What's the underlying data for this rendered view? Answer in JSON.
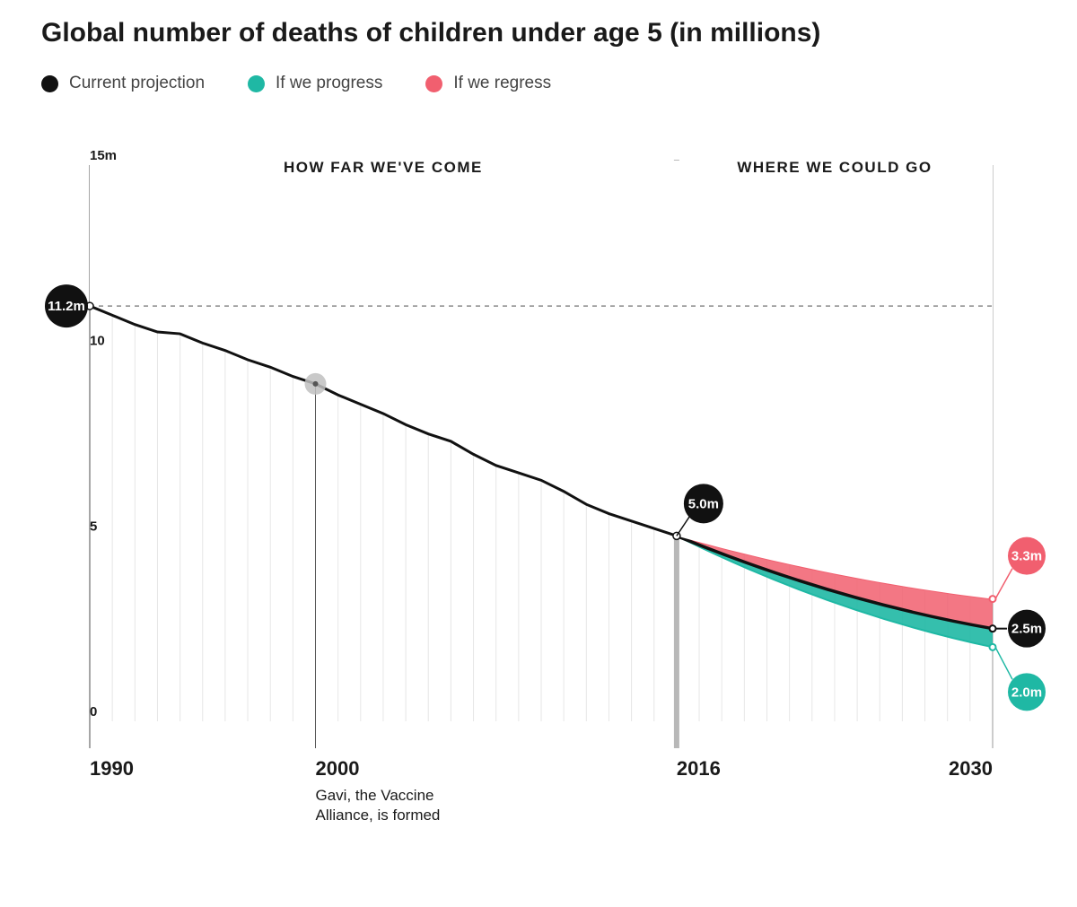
{
  "title": "Global number of deaths of children under age 5 (in millions)",
  "legend": [
    {
      "label": "Current projection",
      "color": "#111111"
    },
    {
      "label": "If we progress",
      "color": "#1fb8a4"
    },
    {
      "label": "If we regress",
      "color": "#f15f6f"
    }
  ],
  "sections": {
    "left_label": "HOW FAR WE'VE COME",
    "right_label": "WHERE WE COULD GO"
  },
  "chart": {
    "type": "line-area-projection",
    "background_color": "#ffffff",
    "x_domain": [
      1990,
      2030
    ],
    "y_domain": [
      0,
      15
    ],
    "y_ticks": [
      0,
      5,
      10,
      15
    ],
    "y_tick_labels": [
      "0",
      "5",
      "10",
      "15m"
    ],
    "x_ticks": [
      1990,
      2000,
      2016,
      2030
    ],
    "x_tick_labels": [
      "1990",
      "2000",
      "2016",
      "2030"
    ],
    "historical_line": {
      "color": "#111111",
      "width": 3,
      "points": [
        [
          1990,
          11.2
        ],
        [
          1991,
          10.95
        ],
        [
          1992,
          10.7
        ],
        [
          1993,
          10.5
        ],
        [
          1994,
          10.45
        ],
        [
          1995,
          10.2
        ],
        [
          1996,
          10.0
        ],
        [
          1997,
          9.75
        ],
        [
          1998,
          9.55
        ],
        [
          1999,
          9.3
        ],
        [
          2000,
          9.1
        ],
        [
          2001,
          8.8
        ],
        [
          2002,
          8.55
        ],
        [
          2003,
          8.3
        ],
        [
          2004,
          8.0
        ],
        [
          2005,
          7.75
        ],
        [
          2006,
          7.55
        ],
        [
          2007,
          7.2
        ],
        [
          2008,
          6.9
        ],
        [
          2009,
          6.7
        ],
        [
          2010,
          6.5
        ],
        [
          2011,
          6.2
        ],
        [
          2012,
          5.85
        ],
        [
          2013,
          5.6
        ],
        [
          2014,
          5.4
        ],
        [
          2015,
          5.2
        ],
        [
          2016,
          5.0
        ]
      ]
    },
    "vertical_bars": {
      "color": "#e6e6e6",
      "width": 1
    },
    "projections": {
      "start_year": 2016,
      "from_value": 5.0,
      "current": {
        "end_year": 2030,
        "end_value": 2.5,
        "color": "#111111",
        "label": "2.5m"
      },
      "progress": {
        "end_year": 2030,
        "end_value": 2.0,
        "color": "#1fb8a4",
        "label": "2.0m"
      },
      "regress": {
        "end_year": 2030,
        "end_value": 3.3,
        "color": "#f15f6f",
        "label": "3.3m"
      }
    },
    "reference_line": {
      "value": 11.2,
      "color": "#8a8a8a",
      "dash": "5,5"
    },
    "divider_2016": {
      "color": "#b8b8b8",
      "width": 6
    },
    "data_bubbles": {
      "start": {
        "year": 1990,
        "value": 11.2,
        "label": "11.2m",
        "color": "#111111",
        "r": 24
      },
      "mid2016": {
        "year": 2016,
        "value": 5.0,
        "label": "5.0m",
        "color": "#111111",
        "r": 22
      }
    },
    "annotations": {
      "gavi": {
        "year": 2000,
        "line1": "Gavi, the Vaccine",
        "line2": "Alliance, is formed",
        "marker_color": "#bfbfbf",
        "marker_r": 12
      }
    }
  }
}
